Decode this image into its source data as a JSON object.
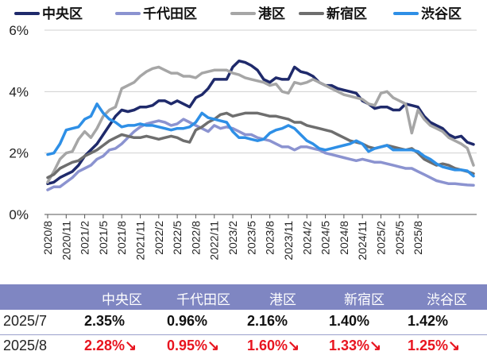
{
  "chart_data": {
    "type": "line",
    "y_ticks": [
      "0%",
      "2%",
      "4%",
      "6%"
    ],
    "ylim": [
      0,
      6
    ],
    "x_tick_labels": [
      "2020/8",
      "2020/11",
      "2021/2",
      "2021/5",
      "2021/8",
      "2021/11",
      "2022/2",
      "2022/5",
      "2022/8",
      "2022/11",
      "2023/2",
      "2023/5",
      "2023/8",
      "2023/11",
      "2024/2",
      "2024/5",
      "2024/8",
      "2024/11",
      "2025/2",
      "2025/5",
      "2025/8"
    ],
    "grid": "horizontal",
    "legend_position": "top",
    "series": [
      {
        "name": "中央区",
        "color": "#1f2a6b",
        "values": [
          1.0,
          1.05,
          1.2,
          1.3,
          1.4,
          1.6,
          1.9,
          2.1,
          2.3,
          2.6,
          2.9,
          3.2,
          3.4,
          3.35,
          3.4,
          3.5,
          3.5,
          3.55,
          3.7,
          3.7,
          3.6,
          3.7,
          3.6,
          3.5,
          3.8,
          3.9,
          4.1,
          4.4,
          4.4,
          4.4,
          4.8,
          5.0,
          4.95,
          4.85,
          4.7,
          4.4,
          4.3,
          4.45,
          4.4,
          4.4,
          4.8,
          4.65,
          4.6,
          4.5,
          4.3,
          4.2,
          4.2,
          4.1,
          4.05,
          4.0,
          3.95,
          3.7,
          3.6,
          3.45,
          3.5,
          3.5,
          3.4,
          3.4,
          3.6,
          3.55,
          3.5,
          3.2,
          3.0,
          2.9,
          2.8,
          2.6,
          2.5,
          2.55,
          2.35,
          2.28
        ]
      },
      {
        "name": "千代田区",
        "color": "#8b93d0",
        "values": [
          0.8,
          0.9,
          0.9,
          1.05,
          1.2,
          1.4,
          1.5,
          1.6,
          1.8,
          1.9,
          2.1,
          2.15,
          2.3,
          2.5,
          2.7,
          2.85,
          2.95,
          3.0,
          3.05,
          3.0,
          2.9,
          2.95,
          3.1,
          3.0,
          2.9,
          2.8,
          2.7,
          2.9,
          2.8,
          2.85,
          2.8,
          2.7,
          2.6,
          2.6,
          2.5,
          2.45,
          2.4,
          2.3,
          2.2,
          2.2,
          2.1,
          2.2,
          2.2,
          2.15,
          2.1,
          2.0,
          1.95,
          1.9,
          1.85,
          1.8,
          1.75,
          1.8,
          1.75,
          1.7,
          1.7,
          1.65,
          1.6,
          1.55,
          1.5,
          1.5,
          1.4,
          1.3,
          1.2,
          1.1,
          1.05,
          1.0,
          1.0,
          0.98,
          0.96,
          0.95
        ]
      },
      {
        "name": "港区",
        "color": "#a6a6a6",
        "values": [
          1.05,
          1.4,
          1.8,
          2.0,
          2.05,
          2.45,
          2.7,
          2.5,
          2.8,
          3.2,
          3.4,
          3.5,
          4.1,
          4.2,
          4.3,
          4.5,
          4.65,
          4.75,
          4.8,
          4.7,
          4.6,
          4.6,
          4.5,
          4.5,
          4.45,
          4.6,
          4.65,
          4.7,
          4.7,
          4.7,
          4.6,
          4.55,
          4.45,
          4.4,
          4.35,
          4.3,
          4.2,
          4.25,
          4.0,
          3.95,
          4.3,
          4.25,
          4.3,
          4.4,
          4.3,
          4.2,
          4.1,
          4.0,
          3.9,
          3.85,
          3.8,
          3.75,
          3.6,
          3.55,
          3.95,
          4.0,
          3.8,
          3.7,
          3.6,
          2.65,
          3.4,
          3.1,
          2.9,
          2.8,
          2.7,
          2.5,
          2.4,
          2.3,
          2.16,
          1.6
        ]
      },
      {
        "name": "新宿区",
        "color": "#6e6e6e",
        "values": [
          1.2,
          1.3,
          1.5,
          1.6,
          1.7,
          1.75,
          1.9,
          2.0,
          2.1,
          2.25,
          2.4,
          2.5,
          2.6,
          2.55,
          2.5,
          2.5,
          2.55,
          2.5,
          2.45,
          2.5,
          2.55,
          2.5,
          2.4,
          2.35,
          2.75,
          2.85,
          3.0,
          3.1,
          3.25,
          3.3,
          3.2,
          3.25,
          3.3,
          3.3,
          3.3,
          3.25,
          3.2,
          3.2,
          3.15,
          3.1,
          3.0,
          3.0,
          2.9,
          2.85,
          2.8,
          2.75,
          2.7,
          2.6,
          2.5,
          2.4,
          2.35,
          2.3,
          2.2,
          2.15,
          2.2,
          2.25,
          2.2,
          2.15,
          2.1,
          2.15,
          2.0,
          1.8,
          1.7,
          1.6,
          1.65,
          1.6,
          1.5,
          1.45,
          1.4,
          1.33
        ]
      },
      {
        "name": "渋谷区",
        "color": "#2e8fe6",
        "values": [
          1.95,
          2.0,
          2.3,
          2.75,
          2.8,
          2.85,
          3.1,
          3.2,
          3.6,
          3.3,
          3.1,
          3.0,
          2.85,
          2.9,
          2.9,
          2.95,
          2.9,
          2.9,
          2.85,
          2.8,
          2.75,
          2.8,
          2.8,
          2.85,
          3.0,
          3.3,
          3.15,
          3.1,
          3.05,
          3.0,
          2.7,
          2.5,
          2.5,
          2.45,
          2.4,
          2.45,
          2.65,
          2.75,
          2.8,
          2.9,
          2.8,
          2.6,
          2.4,
          2.3,
          2.15,
          2.1,
          2.15,
          2.2,
          2.25,
          2.3,
          2.4,
          2.3,
          2.05,
          2.15,
          2.2,
          2.25,
          2.1,
          2.1,
          2.1,
          2.1,
          2.05,
          1.9,
          1.8,
          1.65,
          1.55,
          1.5,
          1.45,
          1.45,
          1.42,
          1.25
        ]
      }
    ]
  },
  "table": {
    "headers": [
      "中央区",
      "千代田区",
      "港区",
      "新宿区",
      "渋谷区"
    ],
    "rows": [
      {
        "label": "2025/7",
        "values": [
          "2.35%",
          "0.96%",
          "2.16%",
          "1.40%",
          "1.42%"
        ]
      },
      {
        "label": "2025/8",
        "values": [
          "2.28%↘",
          "0.95%↘",
          "1.60%↘",
          "1.33%↘",
          "1.25%↘"
        ]
      }
    ]
  }
}
